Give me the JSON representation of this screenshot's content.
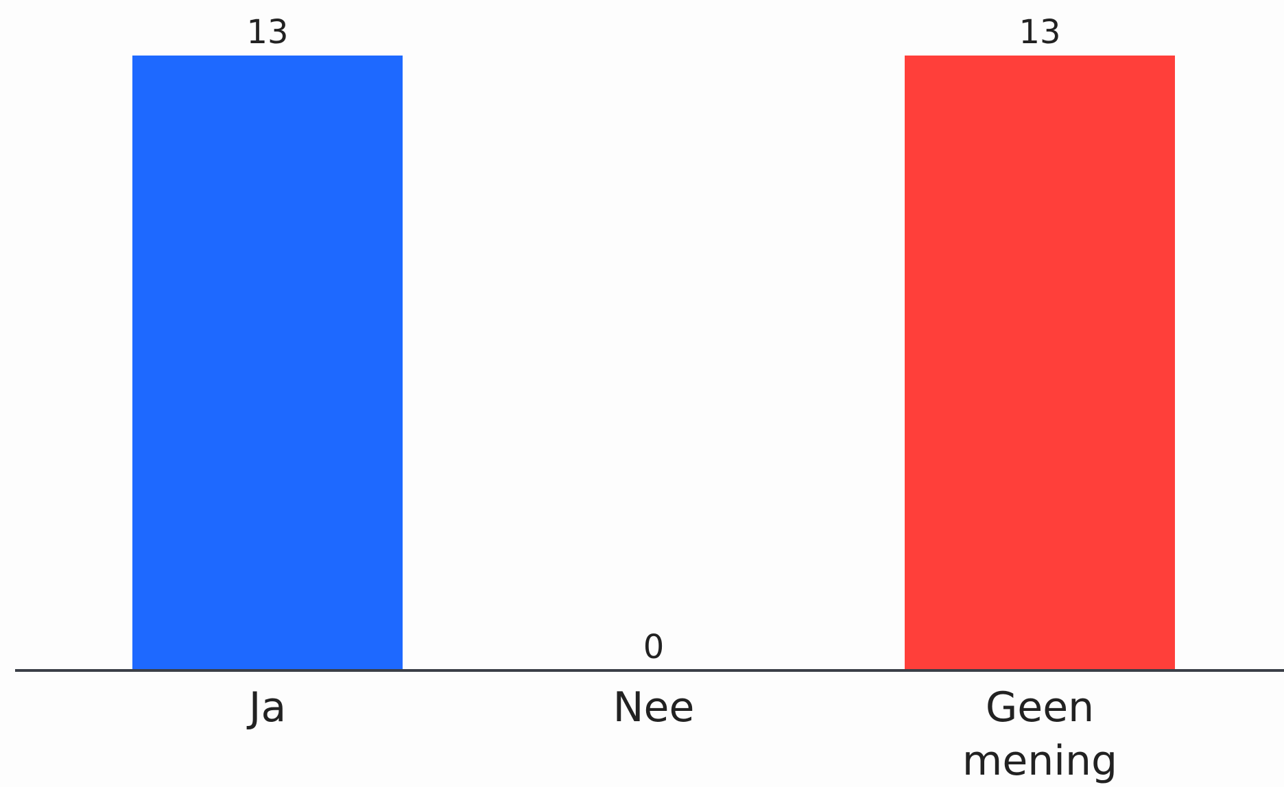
{
  "chart_data": {
    "type": "bar",
    "categories": [
      "Ja",
      "Nee",
      "Geen mening"
    ],
    "category_lines": [
      [
        "Ja"
      ],
      [
        "Nee"
      ],
      [
        "Geen",
        "mening"
      ]
    ],
    "values": [
      13,
      0,
      13
    ],
    "bar_colors": [
      "#1e69ff",
      "#fdfdfd",
      "#ff3f3a"
    ],
    "axis_color": "#3b3f47",
    "title": "",
    "xlabel": "",
    "ylabel": "",
    "ylim": [
      0,
      13
    ],
    "grid": false,
    "legend": "none",
    "show_value_labels": true
  }
}
